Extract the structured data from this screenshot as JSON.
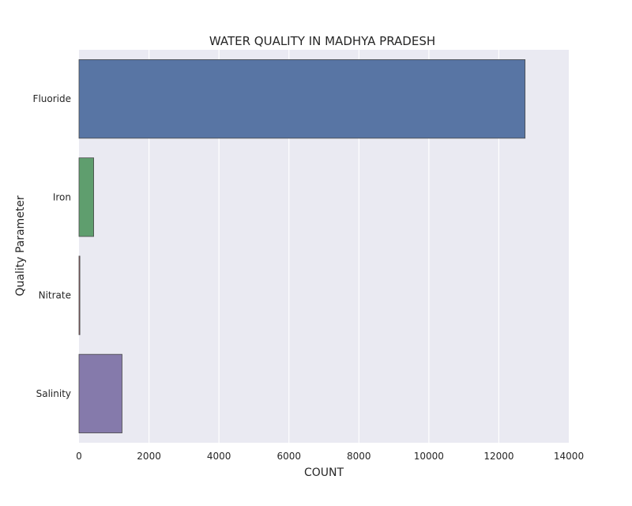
{
  "chart_data": {
    "type": "bar",
    "orientation": "horizontal",
    "title": "WATER QUALITY IN MADHYA PRADESH",
    "xlabel": "COUNT",
    "ylabel": "Quality Parameter",
    "categories": [
      "Fluoride",
      "Iron",
      "Nitrate",
      "Salinity"
    ],
    "values": [
      12750,
      420,
      25,
      1230
    ],
    "colors": [
      "#5875a4",
      "#5f9e6e",
      "#b55d60",
      "#857aab"
    ],
    "xlim": [
      0,
      14000
    ],
    "xticks": [
      0,
      2000,
      4000,
      6000,
      8000,
      10000,
      12000,
      14000
    ],
    "grid": true,
    "legend": false,
    "background": "#eaeaf2"
  }
}
